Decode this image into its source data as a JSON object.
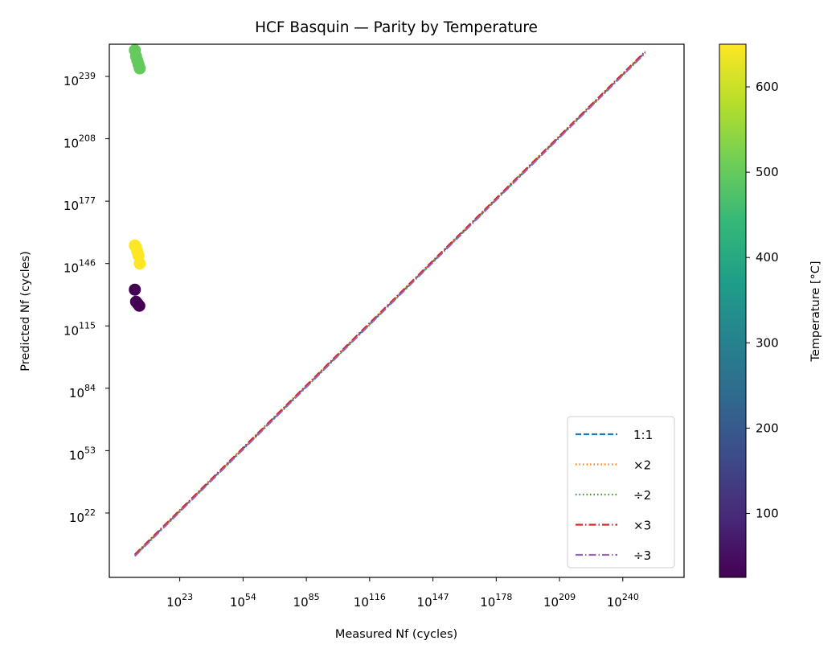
{
  "chart_data": {
    "type": "scatter",
    "title": "HCF Basquin — Parity by Temperature",
    "xlabel": "Measured Nf (cycles)",
    "ylabel": "Predicted Nf (cycles)",
    "x_scale": "log",
    "y_scale": "log",
    "xlim_log10": [
      -11.5,
      270
    ],
    "ylim_log10": [
      -10,
      255
    ],
    "x_ticks": [
      {
        "exp": 23,
        "label": "10",
        "sup": "23"
      },
      {
        "exp": 54,
        "label": "10",
        "sup": "54"
      },
      {
        "exp": 85,
        "label": "10",
        "sup": "85"
      },
      {
        "exp": 116,
        "label": "10",
        "sup": "116"
      },
      {
        "exp": 147,
        "label": "10",
        "sup": "147"
      },
      {
        "exp": 178,
        "label": "10",
        "sup": "178"
      },
      {
        "exp": 209,
        "label": "10",
        "sup": "209"
      },
      {
        "exp": 240,
        "label": "10",
        "sup": "240"
      }
    ],
    "y_ticks": [
      {
        "exp": 22,
        "label": "10",
        "sup": "22"
      },
      {
        "exp": 53,
        "label": "10",
        "sup": "53"
      },
      {
        "exp": 84,
        "label": "10",
        "sup": "84"
      },
      {
        "exp": 115,
        "label": "10",
        "sup": "115"
      },
      {
        "exp": 146,
        "label": "10",
        "sup": "146"
      },
      {
        "exp": 177,
        "label": "10",
        "sup": "177"
      },
      {
        "exp": 208,
        "label": "10",
        "sup": "208"
      },
      {
        "exp": 239,
        "label": "10",
        "sup": "239"
      }
    ],
    "grid": false,
    "legend_position": "lower-right",
    "reference_lines": [
      {
        "name": "1:1",
        "factor": 1,
        "color": "#1f77b4",
        "dash": "dashed"
      },
      {
        "name": "×2",
        "factor": 2,
        "color": "#ff7f0e",
        "dash": "dotted"
      },
      {
        "name": "÷2",
        "factor": 0.5,
        "color": "#2ca02c",
        "dash": "dotted"
      },
      {
        "name": "×3",
        "factor": 3,
        "color": "#d62728",
        "dash": "dashdot"
      },
      {
        "name": "÷3",
        "factor": 0.3333,
        "color": "#9467bd",
        "dash": "dashdot"
      }
    ],
    "reference_line_range_log10": [
      1,
      251
    ],
    "points": [
      {
        "x_log10": 1.0,
        "y_log10": 252,
        "temp_c": 500
      },
      {
        "x_log10": 1.6,
        "y_log10": 249,
        "temp_c": 500
      },
      {
        "x_log10": 2.2,
        "y_log10": 247,
        "temp_c": 500
      },
      {
        "x_log10": 2.8,
        "y_log10": 245,
        "temp_c": 500
      },
      {
        "x_log10": 3.4,
        "y_log10": 243,
        "temp_c": 500
      },
      {
        "x_log10": 1.0,
        "y_log10": 155,
        "temp_c": 650
      },
      {
        "x_log10": 1.6,
        "y_log10": 154,
        "temp_c": 650
      },
      {
        "x_log10": 2.2,
        "y_log10": 152,
        "temp_c": 650
      },
      {
        "x_log10": 2.8,
        "y_log10": 150,
        "temp_c": 650
      },
      {
        "x_log10": 3.4,
        "y_log10": 146,
        "temp_c": 650
      },
      {
        "x_log10": 1.0,
        "y_log10": 133,
        "temp_c": 25
      },
      {
        "x_log10": 1.6,
        "y_log10": 127,
        "temp_c": 25
      },
      {
        "x_log10": 2.4,
        "y_log10": 126,
        "temp_c": 25
      },
      {
        "x_log10": 3.2,
        "y_log10": 125,
        "temp_c": 25
      }
    ],
    "colorbar": {
      "label": "Temperature [°C]",
      "colormap": "viridis",
      "min": 25,
      "max": 650,
      "ticks": [
        100,
        200,
        300,
        400,
        500,
        600
      ]
    }
  }
}
